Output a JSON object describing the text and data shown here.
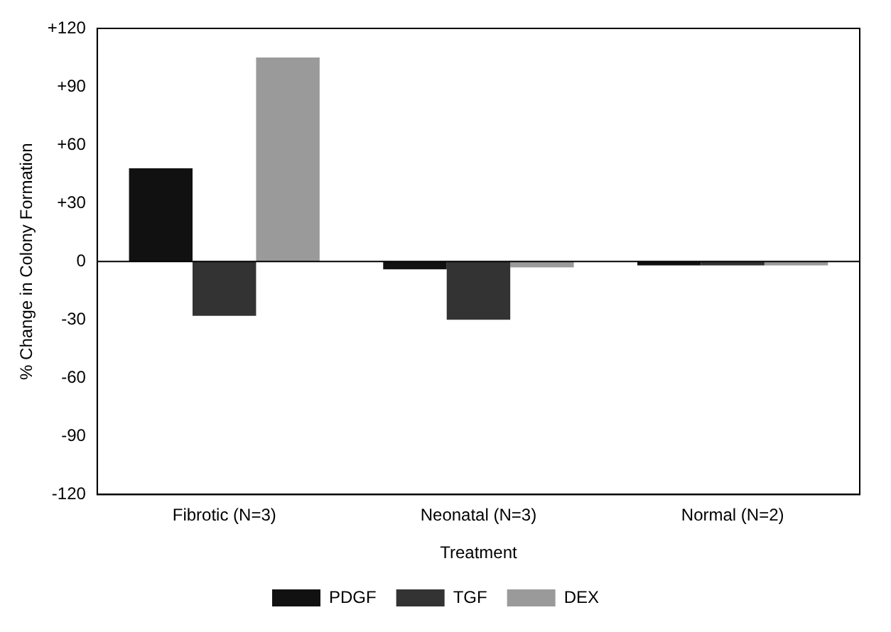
{
  "chart_data": {
    "type": "bar",
    "xlabel": "Treatment",
    "ylabel": "% Change in Colony Formation",
    "categories": [
      "Fibrotic (N=3)",
      "Neonatal (N=3)",
      "Normal (N=2)"
    ],
    "series": [
      {
        "name": "PDGF",
        "color": "#111111",
        "values": [
          48,
          -4,
          -2
        ]
      },
      {
        "name": "TGF",
        "color": "#333333",
        "values": [
          -28,
          -30,
          -2
        ]
      },
      {
        "name": "DEX",
        "color": "#9a9a9a",
        "values": [
          105,
          -3,
          -2
        ]
      }
    ],
    "ylim": [
      -120,
      120
    ],
    "yticks": [
      {
        "value": 120,
        "label": "+120"
      },
      {
        "value": 90,
        "label": "+90"
      },
      {
        "value": 60,
        "label": "+60"
      },
      {
        "value": 30,
        "label": "+30"
      },
      0,
      -30,
      -60,
      -90,
      -120
    ],
    "ref_lines": [
      {
        "axis": "y",
        "value": 0,
        "color": "#000000"
      }
    ],
    "grid": false,
    "legend": "bottom"
  }
}
